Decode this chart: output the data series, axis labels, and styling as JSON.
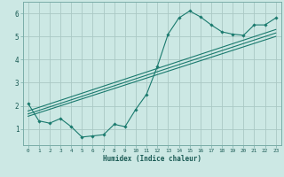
{
  "title": "",
  "xlabel": "Humidex (Indice chaleur)",
  "ylabel": "",
  "bg_color": "#cce8e4",
  "line_color": "#1a7a6e",
  "grid_color": "#aac8c4",
  "xlim": [
    -0.5,
    23.5
  ],
  "ylim": [
    0.3,
    6.5
  ],
  "xticks": [
    0,
    1,
    2,
    3,
    4,
    5,
    6,
    7,
    8,
    9,
    10,
    11,
    12,
    13,
    14,
    15,
    16,
    17,
    18,
    19,
    20,
    21,
    22,
    23
  ],
  "yticks": [
    1,
    2,
    3,
    4,
    5,
    6
  ],
  "main_x": [
    0,
    1,
    2,
    3,
    4,
    5,
    6,
    7,
    8,
    9,
    10,
    11,
    12,
    13,
    14,
    15,
    16,
    17,
    18,
    19,
    20,
    21,
    22,
    23
  ],
  "main_y": [
    2.1,
    1.35,
    1.25,
    1.45,
    1.1,
    0.65,
    0.7,
    0.75,
    1.2,
    1.1,
    1.85,
    2.5,
    3.7,
    5.1,
    5.8,
    6.1,
    5.85,
    5.5,
    5.2,
    5.1,
    5.05,
    5.5,
    5.5,
    5.8
  ],
  "line1_x": [
    0,
    23
  ],
  "line1_y": [
    1.55,
    5.0
  ],
  "line2_x": [
    0,
    23
  ],
  "line2_y": [
    1.65,
    5.15
  ],
  "line3_x": [
    0,
    23
  ],
  "line3_y": [
    1.78,
    5.3
  ]
}
